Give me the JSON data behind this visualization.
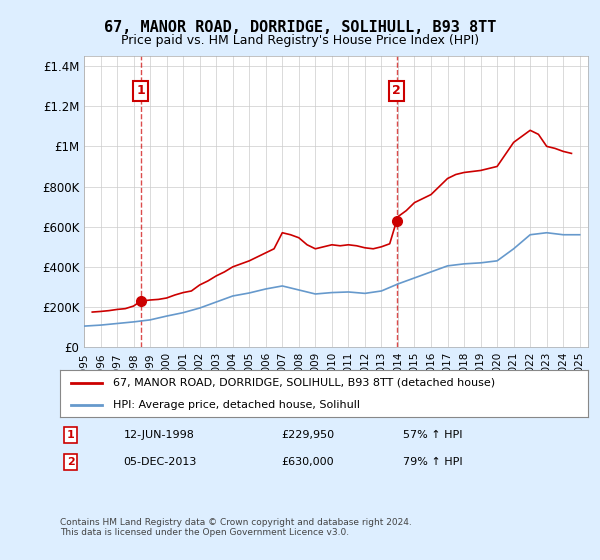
{
  "title": "67, MANOR ROAD, DORRIDGE, SOLIHULL, B93 8TT",
  "subtitle": "Price paid vs. HM Land Registry's House Price Index (HPI)",
  "ylabel_ticks": [
    "£0",
    "£200K",
    "£400K",
    "£600K",
    "£800K",
    "£1M",
    "£1.2M",
    "£1.4M"
  ],
  "ytick_values": [
    0,
    200000,
    400000,
    600000,
    800000,
    1000000,
    1200000,
    1400000
  ],
  "ylim": [
    0,
    1450000
  ],
  "xlim_start": 1995.0,
  "xlim_end": 2025.5,
  "purchase1_date": 1998.44,
  "purchase1_price": 229950,
  "purchase1_label": "1",
  "purchase1_date_str": "12-JUN-1998",
  "purchase1_price_str": "£229,950",
  "purchase1_hpi_str": "57% ↑ HPI",
  "purchase2_date": 2013.92,
  "purchase2_price": 630000,
  "purchase2_label": "2",
  "purchase2_date_str": "05-DEC-2013",
  "purchase2_price_str": "£630,000",
  "purchase2_hpi_str": "79% ↑ HPI",
  "hpi_line_color": "#6699cc",
  "property_line_color": "#cc0000",
  "background_color": "#ddeeff",
  "plot_bg_color": "#ffffff",
  "grid_color": "#cccccc",
  "legend1_label": "67, MANOR ROAD, DORRIDGE, SOLIHULL, B93 8TT (detached house)",
  "legend2_label": "HPI: Average price, detached house, Solihull",
  "footer": "Contains HM Land Registry data © Crown copyright and database right 2024.\nThis data is licensed under the Open Government Licence v3.0.",
  "years": [
    1995,
    1996,
    1997,
    1998,
    1999,
    2000,
    2001,
    2002,
    2003,
    2004,
    2005,
    2006,
    2007,
    2008,
    2009,
    2010,
    2011,
    2012,
    2013,
    2014,
    2015,
    2016,
    2017,
    2018,
    2019,
    2020,
    2021,
    2022,
    2023,
    2024,
    2025
  ],
  "hpi_values": [
    105000,
    110000,
    118000,
    126000,
    136000,
    155000,
    172000,
    195000,
    225000,
    255000,
    270000,
    290000,
    305000,
    285000,
    265000,
    272000,
    275000,
    268000,
    280000,
    315000,
    345000,
    375000,
    405000,
    415000,
    420000,
    430000,
    490000,
    560000,
    570000,
    560000,
    560000
  ],
  "property_values_x": [
    1995.5,
    1996.0,
    1996.5,
    1997.0,
    1997.5,
    1998.0,
    1998.44,
    1998.5,
    1999.0,
    1999.5,
    2000.0,
    2000.5,
    2001.0,
    2001.5,
    2002.0,
    2002.5,
    2003.0,
    2003.5,
    2004.0,
    2004.5,
    2005.0,
    2005.5,
    2006.0,
    2006.5,
    2007.0,
    2007.5,
    2008.0,
    2008.5,
    2009.0,
    2009.5,
    2010.0,
    2010.5,
    2011.0,
    2011.5,
    2012.0,
    2012.5,
    2013.0,
    2013.5,
    2013.92,
    2014.0,
    2014.5,
    2015.0,
    2015.5,
    2016.0,
    2016.5,
    2017.0,
    2017.5,
    2018.0,
    2018.5,
    2019.0,
    2019.5,
    2020.0,
    2020.5,
    2021.0,
    2021.5,
    2022.0,
    2022.5,
    2023.0,
    2023.5,
    2024.0,
    2024.5
  ],
  "property_values_y": [
    175000,
    178000,
    182000,
    188000,
    192000,
    205000,
    229950,
    230000,
    235000,
    238000,
    245000,
    260000,
    272000,
    280000,
    310000,
    330000,
    355000,
    375000,
    400000,
    415000,
    430000,
    450000,
    470000,
    490000,
    570000,
    560000,
    545000,
    510000,
    490000,
    500000,
    510000,
    505000,
    510000,
    505000,
    495000,
    490000,
    500000,
    515000,
    630000,
    650000,
    680000,
    720000,
    740000,
    760000,
    800000,
    840000,
    860000,
    870000,
    875000,
    880000,
    890000,
    900000,
    960000,
    1020000,
    1050000,
    1080000,
    1060000,
    1000000,
    990000,
    975000,
    965000
  ]
}
